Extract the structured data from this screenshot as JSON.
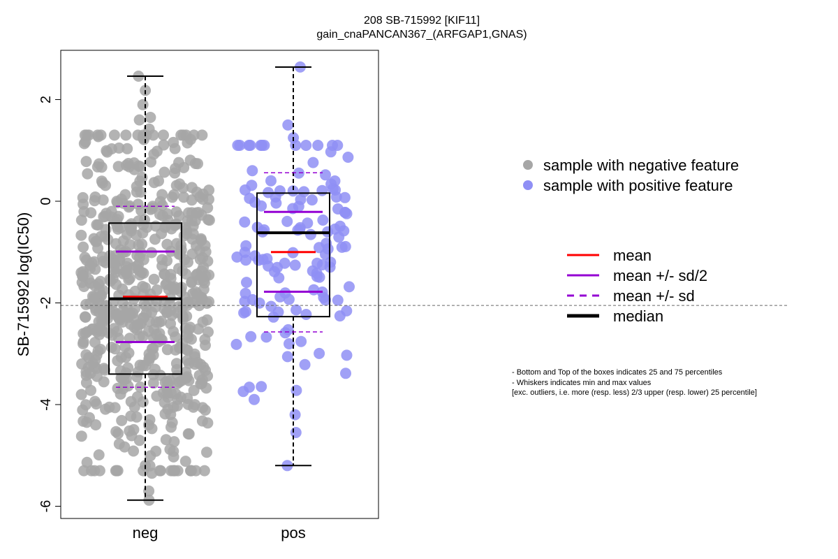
{
  "chart_data": {
    "type": "boxplot",
    "title": "208 SB-715992 [KIF11]",
    "subtitle": "gain_cnaPANCAN367_(ARFGAP1,GNAS)",
    "xlabel": "",
    "ylabel": "SB-715992 log(IC50)",
    "ylim": [
      -6.2,
      2.9
    ],
    "yticks": [
      -6,
      -4,
      -2,
      0,
      2
    ],
    "reference_line": -2.05,
    "grid": false,
    "categories": [
      "neg",
      "pos"
    ],
    "groups": [
      {
        "name": "neg",
        "color": "#a6a6a6",
        "whisker_min": -5.88,
        "q1": -3.4,
        "median": -1.92,
        "q3": -0.43,
        "whisker_max": 2.46,
        "mean": -1.88,
        "mean_minus_half_sd": -2.77,
        "mean_plus_half_sd": -0.99,
        "mean_minus_sd": -3.66,
        "mean_plus_sd": -0.1,
        "n_points_approx": 620,
        "highlight_points": [
          2.46,
          2.18,
          1.9,
          1.65,
          1.6,
          1.42,
          1.25,
          -5.2,
          -5.35,
          -5.7,
          -5.88
        ]
      },
      {
        "name": "pos",
        "color": "#8f8ff5",
        "whisker_min": -5.2,
        "q1": -2.27,
        "median": -0.62,
        "q3": 0.16,
        "whisker_max": 2.64,
        "mean": -1.0,
        "mean_minus_half_sd": -1.78,
        "mean_plus_half_sd": -0.21,
        "mean_minus_sd": -2.57,
        "mean_plus_sd": 0.56,
        "n_points_approx": 130,
        "highlight_points": [
          2.64,
          1.5,
          1.25,
          -4.2,
          -4.55,
          -5.2
        ]
      }
    ],
    "legend": {
      "points": [
        {
          "label": "sample with negative feature",
          "color": "#a6a6a6"
        },
        {
          "label": "sample with positive feature",
          "color": "#8f8ff5"
        }
      ],
      "lines": [
        {
          "label": "mean",
          "color": "#ff0000",
          "style": "solid"
        },
        {
          "label": "mean +/- sd/2",
          "color": "#9400d3",
          "style": "solid"
        },
        {
          "label": "mean +/- sd",
          "color": "#9400d3",
          "style": "dashed"
        },
        {
          "label": "median",
          "color": "#000000",
          "style": "solid-thick"
        }
      ]
    },
    "notes": [
      "- Bottom and Top of the boxes indicates 25 and 75 percentiles",
      "- Whiskers indicates min and max values",
      "[exc. outliers, i.e. more (resp. less) 2/3 upper (resp. lower) 25 percentile]"
    ]
  }
}
